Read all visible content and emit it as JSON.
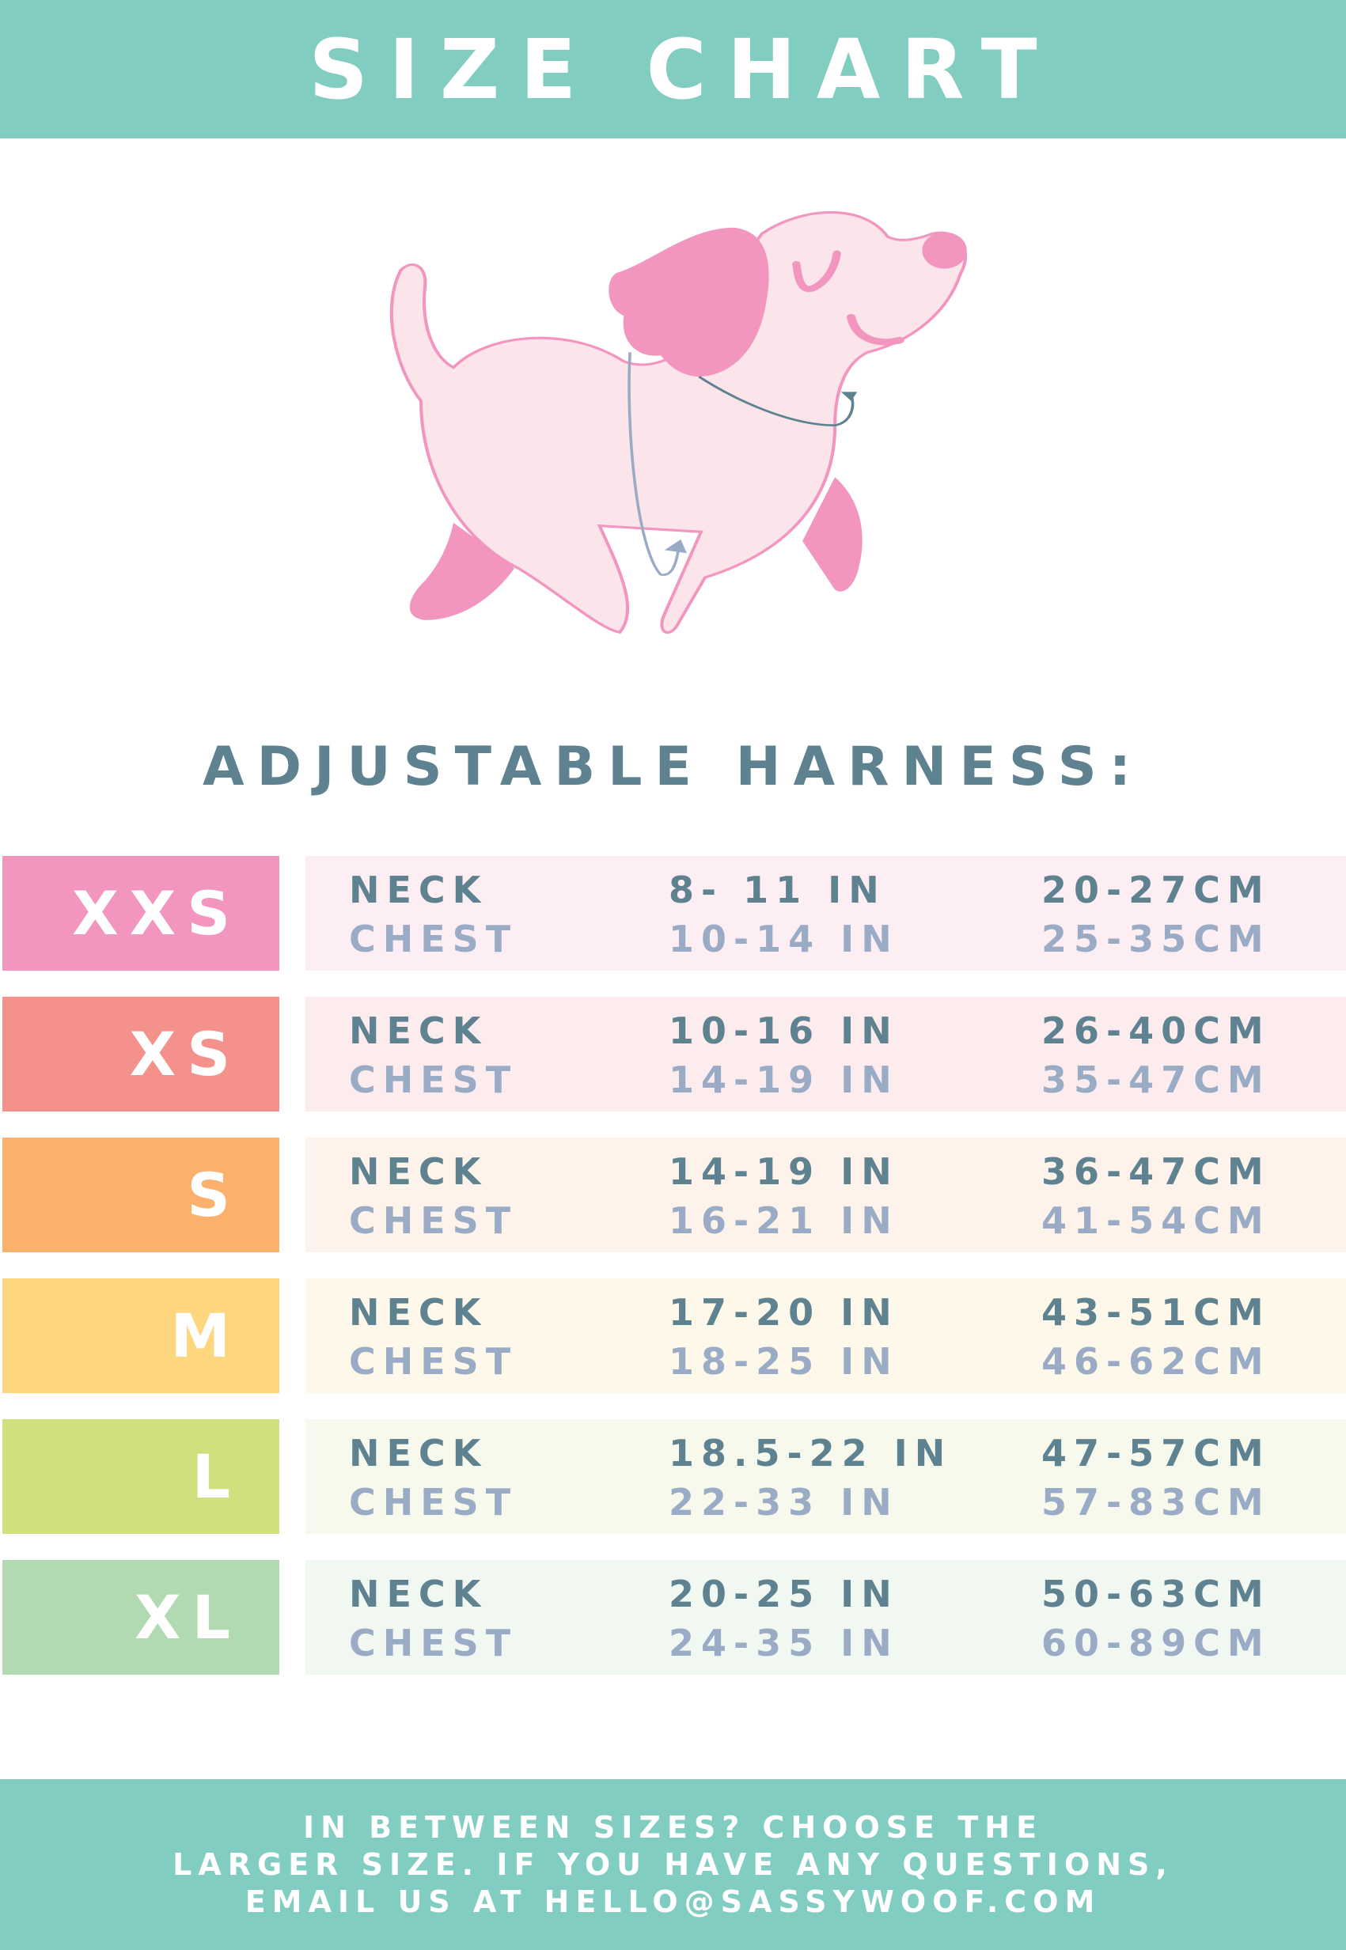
{
  "header": {
    "title": "SIZE CHART"
  },
  "subtitle": "ADJUSTABLE HARNESS:",
  "colors": {
    "brand_teal": "#82cdc2",
    "neck_text": "#5f8291",
    "chest_text": "#9aabc6",
    "dog_pink": "#f295bf",
    "dog_body": "#fbe4ea"
  },
  "sizes": [
    {
      "label": "XXS",
      "color": "#f295bf",
      "bg": "#fdeef4",
      "neck_label": "NECK",
      "chest_label": "CHEST",
      "neck_in": "8- 11 IN",
      "neck_cm": "20-27CM",
      "chest_in": "10-14 IN",
      "chest_cm": "25-35CM"
    },
    {
      "label": "XS",
      "color": "#f4918a",
      "bg": "#fdeced",
      "neck_label": "NECK",
      "chest_label": "CHEST",
      "neck_in": "10-16 IN",
      "neck_cm": "26-40CM",
      "chest_in": "14-19 IN",
      "chest_cm": "35-47CM"
    },
    {
      "label": "S",
      "color": "#fbb06c",
      "bg": "#fdf3ea",
      "neck_label": "NECK",
      "chest_label": "CHEST",
      "neck_in": "14-19 IN",
      "neck_cm": "36-47CM",
      "chest_in": "16-21 IN",
      "chest_cm": "41-54CM"
    },
    {
      "label": "M",
      "color": "#fdd67e",
      "bg": "#fef8ea",
      "neck_label": "NECK",
      "chest_label": "CHEST",
      "neck_in": "17-20 IN",
      "neck_cm": "43-51CM",
      "chest_in": "18-25 IN",
      "chest_cm": "46-62CM"
    },
    {
      "label": "L",
      "color": "#cfe07f",
      "bg": "#f6f9ec",
      "neck_label": "NECK",
      "chest_label": "CHEST",
      "neck_in": "18.5-22 IN",
      "neck_cm": "47-57CM",
      "chest_in": "22-33 IN",
      "chest_cm": "57-83CM"
    },
    {
      "label": "XL",
      "color": "#b1d9b2",
      "bg": "#f1f7f1",
      "neck_label": "NECK",
      "chest_label": "CHEST",
      "neck_in": "20-25 IN",
      "neck_cm": "50-63CM",
      "chest_in": "24-35 IN",
      "chest_cm": "60-89CM"
    }
  ],
  "footer": {
    "lines": [
      "IN BETWEEN SIZES? CHOOSE THE",
      "LARGER SIZE. IF YOU HAVE ANY QUESTIONS,",
      "EMAIL US AT HELLO@SASSYWOOF.COM"
    ]
  }
}
